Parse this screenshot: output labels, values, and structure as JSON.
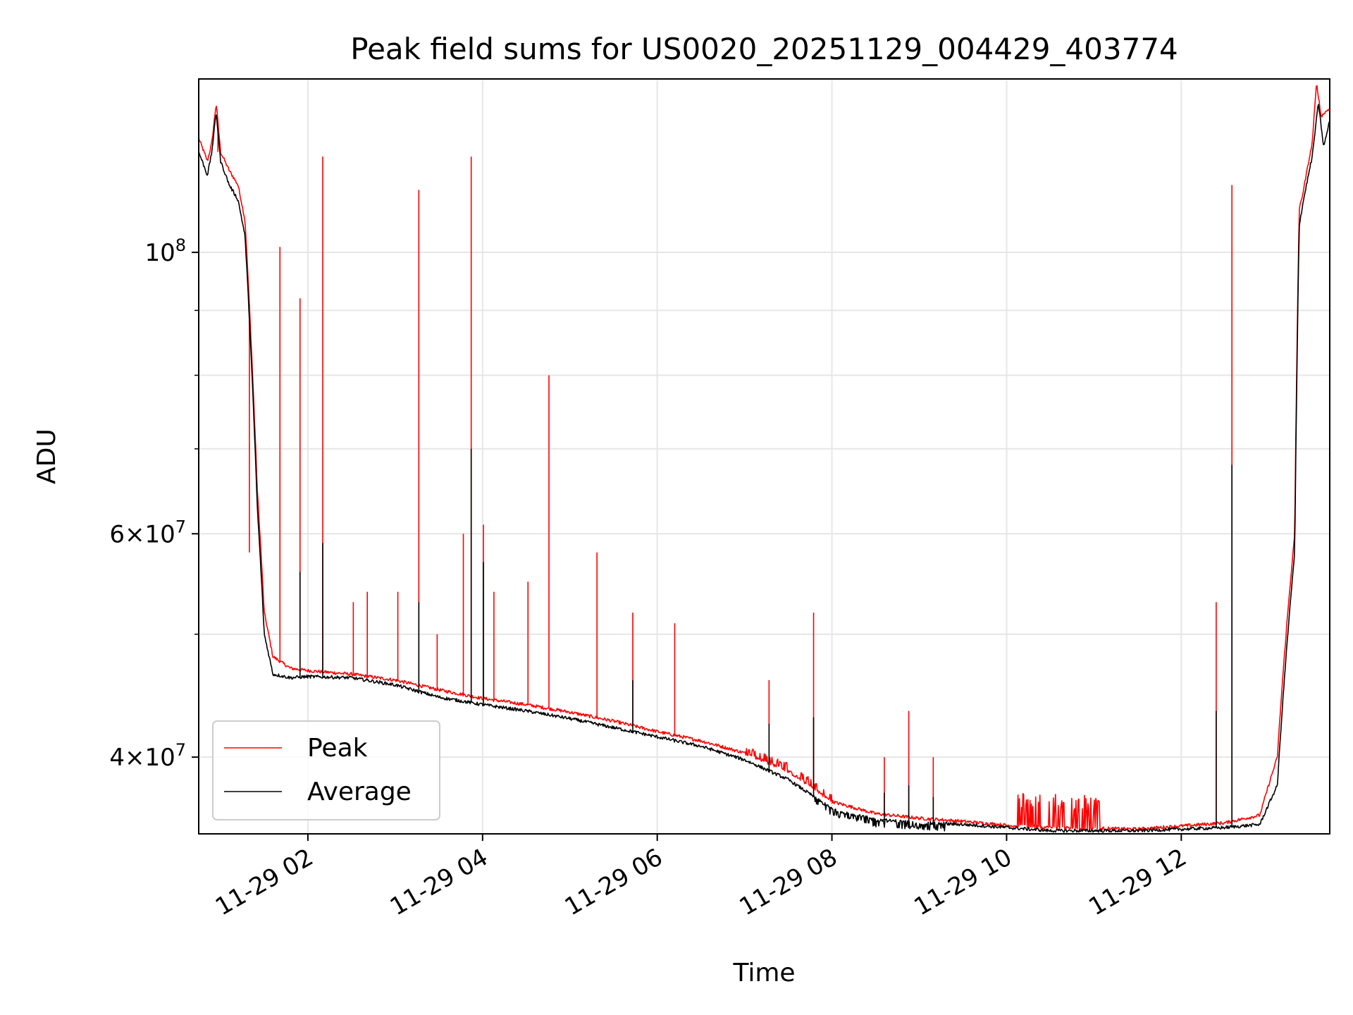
{
  "chart_data": {
    "type": "line",
    "title": "Peak field sums for US0020_20251129_004429_403774",
    "xlabel": "Time",
    "ylabel": "ADU",
    "yscale": "log",
    "xlim_hours": [
      0.75,
      13.7
    ],
    "ylim": [
      34800000,
      137000000
    ],
    "grid": true,
    "legend_position": "lower-left",
    "x_ticks": [
      {
        "hour": 2,
        "label": "11-29 02"
      },
      {
        "hour": 4,
        "label": "11-29 04"
      },
      {
        "hour": 6,
        "label": "11-29 06"
      },
      {
        "hour": 8,
        "label": "11-29 08"
      },
      {
        "hour": 10,
        "label": "11-29 10"
      },
      {
        "hour": 12,
        "label": "11-29 12"
      }
    ],
    "y_ticks": [
      {
        "value": 40000000,
        "base": "4",
        "exp": "7"
      },
      {
        "value": 60000000,
        "base": "6",
        "exp": "7"
      },
      {
        "value": 100000000,
        "base": "10",
        "exp": "8"
      }
    ],
    "y_minor_ticks": [
      50000000,
      70000000,
      80000000,
      90000000
    ],
    "series": [
      {
        "name": "Peak",
        "color": "#ff0000",
        "baseline": [
          [
            0.75,
            123000000
          ],
          [
            0.85,
            118000000
          ],
          [
            0.9,
            122000000
          ],
          [
            0.95,
            131000000
          ],
          [
            1.0,
            120000000
          ],
          [
            1.1,
            116000000
          ],
          [
            1.2,
            113000000
          ],
          [
            1.28,
            106000000
          ],
          [
            1.35,
            85000000
          ],
          [
            1.42,
            65000000
          ],
          [
            1.5,
            52000000
          ],
          [
            1.6,
            48000000
          ],
          [
            1.8,
            47000000
          ],
          [
            2.0,
            46800000
          ],
          [
            2.5,
            46500000
          ],
          [
            3.0,
            46000000
          ],
          [
            3.5,
            45200000
          ],
          [
            4.0,
            44500000
          ],
          [
            4.5,
            44000000
          ],
          [
            5.0,
            43400000
          ],
          [
            5.5,
            42700000
          ],
          [
            6.0,
            41900000
          ],
          [
            6.5,
            41200000
          ],
          [
            7.0,
            40300000
          ],
          [
            7.5,
            39000000
          ],
          [
            8.0,
            36900000
          ],
          [
            8.5,
            36100000
          ],
          [
            9.0,
            35800000
          ],
          [
            9.5,
            35600000
          ],
          [
            10.0,
            35350000
          ],
          [
            10.5,
            35200000
          ],
          [
            11.0,
            35150000
          ],
          [
            11.5,
            35100000
          ],
          [
            12.0,
            35300000
          ],
          [
            12.5,
            35500000
          ],
          [
            12.9,
            36000000
          ],
          [
            13.1,
            40000000
          ],
          [
            13.3,
            60000000
          ],
          [
            13.35,
            108000000
          ],
          [
            13.4,
            112000000
          ],
          [
            13.5,
            122000000
          ],
          [
            13.55,
            136000000
          ],
          [
            13.6,
            128000000
          ],
          [
            13.7,
            130000000
          ]
        ],
        "spikes": [
          [
            0.97,
            120000000
          ],
          [
            1.33,
            58000000
          ],
          [
            1.68,
            101000000
          ],
          [
            1.91,
            92000000
          ],
          [
            2.17,
            119000000
          ],
          [
            3.27,
            112000000
          ],
          [
            3.87,
            119000000
          ],
          [
            4.01,
            61000000
          ],
          [
            3.78,
            60000000
          ],
          [
            4.76,
            80000000
          ],
          [
            4.52,
            55000000
          ],
          [
            5.31,
            58000000
          ],
          [
            5.72,
            52000000
          ],
          [
            6.2,
            51000000
          ],
          [
            7.28,
            46000000
          ],
          [
            7.79,
            52000000
          ],
          [
            8.6,
            40000000
          ],
          [
            8.88,
            43500000
          ],
          [
            9.16,
            40000000
          ],
          [
            12.4,
            53000000
          ],
          [
            12.58,
            113000000
          ],
          [
            2.68,
            54000000
          ],
          [
            3.03,
            54000000
          ],
          [
            2.52,
            53000000
          ],
          [
            4.13,
            54000000
          ],
          [
            3.48,
            50000000
          ]
        ]
      },
      {
        "name": "Average",
        "color": "#000000",
        "baseline": [
          [
            0.75,
            120000000
          ],
          [
            0.85,
            115000000
          ],
          [
            0.9,
            120000000
          ],
          [
            0.95,
            129000000
          ],
          [
            1.0,
            118000000
          ],
          [
            1.1,
            113000000
          ],
          [
            1.2,
            110000000
          ],
          [
            1.28,
            103000000
          ],
          [
            1.35,
            83000000
          ],
          [
            1.42,
            63000000
          ],
          [
            1.5,
            50000000
          ],
          [
            1.6,
            46500000
          ],
          [
            1.8,
            46200000
          ],
          [
            2.0,
            46300000
          ],
          [
            2.5,
            46200000
          ],
          [
            3.0,
            45600000
          ],
          [
            3.5,
            44600000
          ],
          [
            4.0,
            44000000
          ],
          [
            4.5,
            43500000
          ],
          [
            5.0,
            42900000
          ],
          [
            5.5,
            42200000
          ],
          [
            6.0,
            41500000
          ],
          [
            6.5,
            40800000
          ],
          [
            7.0,
            39800000
          ],
          [
            7.5,
            38400000
          ],
          [
            8.0,
            36400000
          ],
          [
            8.5,
            35700000
          ],
          [
            9.0,
            35500000
          ],
          [
            9.5,
            35400000
          ],
          [
            10.0,
            35200000
          ],
          [
            10.5,
            35000000
          ],
          [
            11.0,
            35000000
          ],
          [
            11.5,
            35000000
          ],
          [
            12.0,
            35100000
          ],
          [
            12.5,
            35200000
          ],
          [
            12.9,
            35400000
          ],
          [
            13.1,
            38000000
          ],
          [
            13.3,
            58000000
          ],
          [
            13.35,
            105000000
          ],
          [
            13.4,
            110000000
          ],
          [
            13.5,
            119000000
          ],
          [
            13.57,
            131000000
          ],
          [
            13.63,
            121000000
          ],
          [
            13.7,
            127000000
          ]
        ],
        "spikes": [
          [
            3.87,
            70000000
          ],
          [
            12.58,
            68000000
          ],
          [
            2.17,
            59000000
          ],
          [
            4.01,
            57000000
          ],
          [
            1.91,
            56000000
          ],
          [
            3.27,
            53000000
          ],
          [
            12.4,
            43500000
          ],
          [
            7.28,
            42500000
          ],
          [
            7.79,
            43000000
          ],
          [
            8.88,
            38000000
          ],
          [
            5.72,
            46000000
          ],
          [
            8.6,
            37500000
          ],
          [
            9.16,
            37200000
          ]
        ]
      }
    ]
  }
}
